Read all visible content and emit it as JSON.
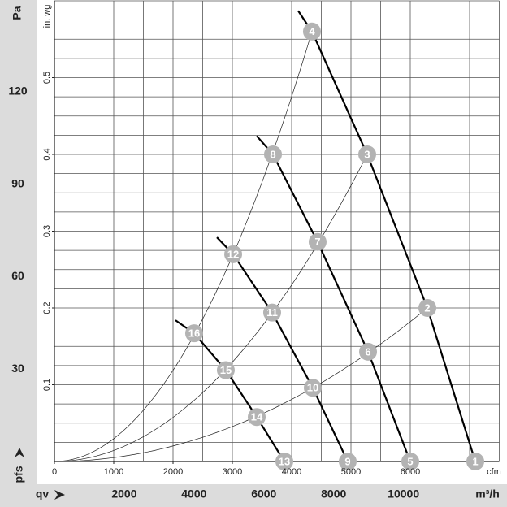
{
  "chart_data": {
    "type": "line",
    "x_label": "cfm",
    "y_label": "in. wg",
    "y2_label": "Pa",
    "x2_label": "m³/h",
    "pressure_symbol": "pfs",
    "flow_symbol": "qv",
    "xlim": [
      0,
      7500
    ],
    "ylim": [
      0,
      0.6
    ],
    "xticks": [
      0,
      1000,
      2000,
      3000,
      4000,
      5000,
      6000
    ],
    "yticks": [
      0.1,
      0.2,
      0.3,
      0.4,
      0.5
    ],
    "y2lim": [
      0,
      149.45
    ],
    "y2ticks": [
      30,
      60,
      90,
      120
    ],
    "x2lim": [
      0,
      12743
    ],
    "x2ticks": [
      2000,
      4000,
      6000,
      8000,
      10000
    ],
    "minor_grid": {
      "x": 500,
      "y": 0.025
    },
    "point_color": "#b3b3b3",
    "line_color": "#000000",
    "series": [
      {
        "x": [
          4110,
          4342,
          5274,
          6288,
          7096
        ],
        "values": [
          0.587,
          0.56,
          0.4,
          0.2,
          0
        ],
        "point_labels": [
          null,
          "4",
          "3",
          "2",
          "1"
        ]
      },
      {
        "x": [
          3411,
          3685,
          4438,
          5288,
          6000
        ],
        "values": [
          0.424,
          0.4,
          0.286,
          0.143,
          0
        ],
        "point_labels": [
          null,
          "8",
          "7",
          "6",
          "5"
        ]
      },
      {
        "x": [
          2740,
          3014,
          3671,
          4356,
          4945
        ],
        "values": [
          0.292,
          0.27,
          0.194,
          0.096,
          0
        ],
        "point_labels": [
          null,
          "12",
          "11",
          "10",
          "9"
        ]
      },
      {
        "x": [
          2041,
          2356,
          2890,
          3411,
          3877
        ],
        "values": [
          0.184,
          0.167,
          0.119,
          0.058,
          0
        ],
        "point_labels": [
          null,
          "16",
          "15",
          "14",
          "13"
        ]
      }
    ]
  }
}
